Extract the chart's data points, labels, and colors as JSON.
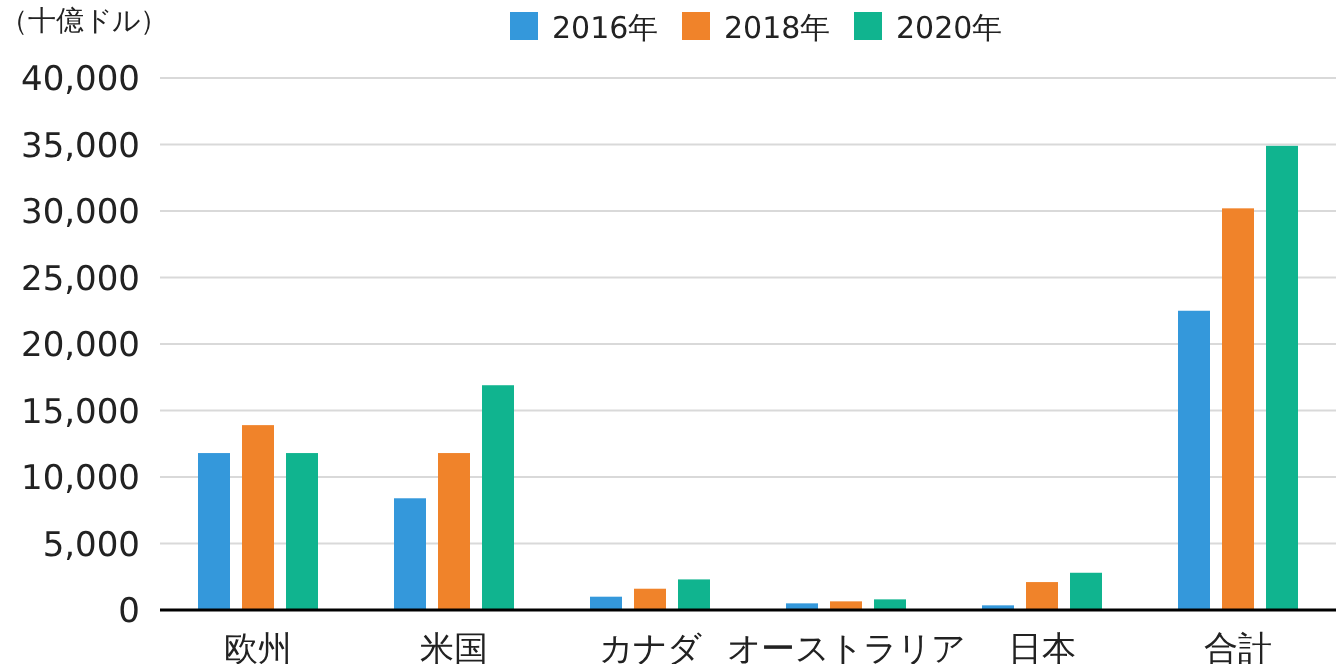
{
  "chart_data": {
    "type": "bar",
    "ylabel": "（十億ドル）",
    "categories": [
      "欧州",
      "米国",
      "カナダ",
      "オーストラリア",
      "日本",
      "合計"
    ],
    "series": [
      {
        "name": "2016年",
        "color": "#3498db",
        "values": [
          11800,
          8400,
          1000,
          500,
          350,
          22500
        ]
      },
      {
        "name": "2018年",
        "color": "#f0832a",
        "values": [
          13900,
          11800,
          1600,
          650,
          2100,
          30200
        ]
      },
      {
        "name": "2020年",
        "color": "#10b48f",
        "values": [
          11800,
          16900,
          2300,
          800,
          2800,
          34900
        ]
      }
    ],
    "ylim": [
      0,
      40000
    ],
    "yticks": [
      {
        "value": 0,
        "label": "0"
      },
      {
        "value": 5000,
        "label": "5,000"
      },
      {
        "value": 10000,
        "label": "10,000"
      },
      {
        "value": 15000,
        "label": "15,000"
      },
      {
        "value": 20000,
        "label": "20,000"
      },
      {
        "value": 25000,
        "label": "25,000"
      },
      {
        "value": 30000,
        "label": "30,000"
      },
      {
        "value": 35000,
        "label": "35,000"
      },
      {
        "value": 40000,
        "label": "40,000"
      }
    ],
    "grid": "y",
    "legend": "top"
  }
}
